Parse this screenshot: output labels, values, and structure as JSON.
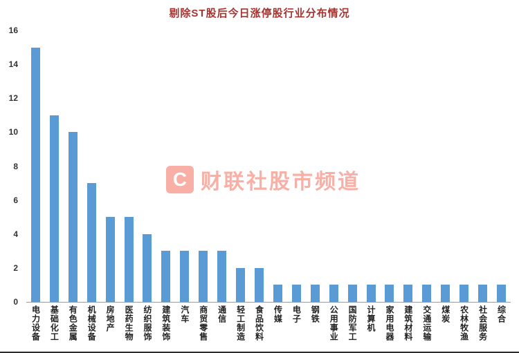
{
  "chart_data": {
    "type": "bar",
    "title": "剔除ST股后今日涨停股行业分布情况",
    "title_color": "#a3342f",
    "bar_color": "#5b9bd5",
    "categories": [
      "电力设备",
      "基础化工",
      "有色金属",
      "机械设备",
      "房地产",
      "医药生物",
      "纺织服饰",
      "建筑装饰",
      "汽车",
      "商贸零售",
      "通信",
      "轻工制造",
      "食品饮料",
      "传媒",
      "电子",
      "钢铁",
      "公用事业",
      "国防军工",
      "计算机",
      "家用电器",
      "建筑材料",
      "交通运输",
      "煤炭",
      "农林牧渔",
      "社会服务",
      "综合"
    ],
    "values": [
      15,
      11,
      10,
      7,
      5,
      5,
      4,
      3,
      3,
      3,
      3,
      2,
      2,
      1,
      1,
      1,
      1,
      1,
      1,
      1,
      1,
      1,
      1,
      1,
      1,
      1
    ],
    "xlabel": "",
    "ylabel": "",
    "ylim": [
      0,
      16
    ],
    "ytick_step": 2,
    "yticks": [
      0,
      2,
      4,
      6,
      8,
      10,
      12,
      14,
      16
    ],
    "grid": false,
    "legend": "none",
    "x_label_orientation": "vertical"
  },
  "watermark": {
    "logo_letter": "C",
    "text": "财联社股市频道",
    "color": "#f0503a"
  }
}
